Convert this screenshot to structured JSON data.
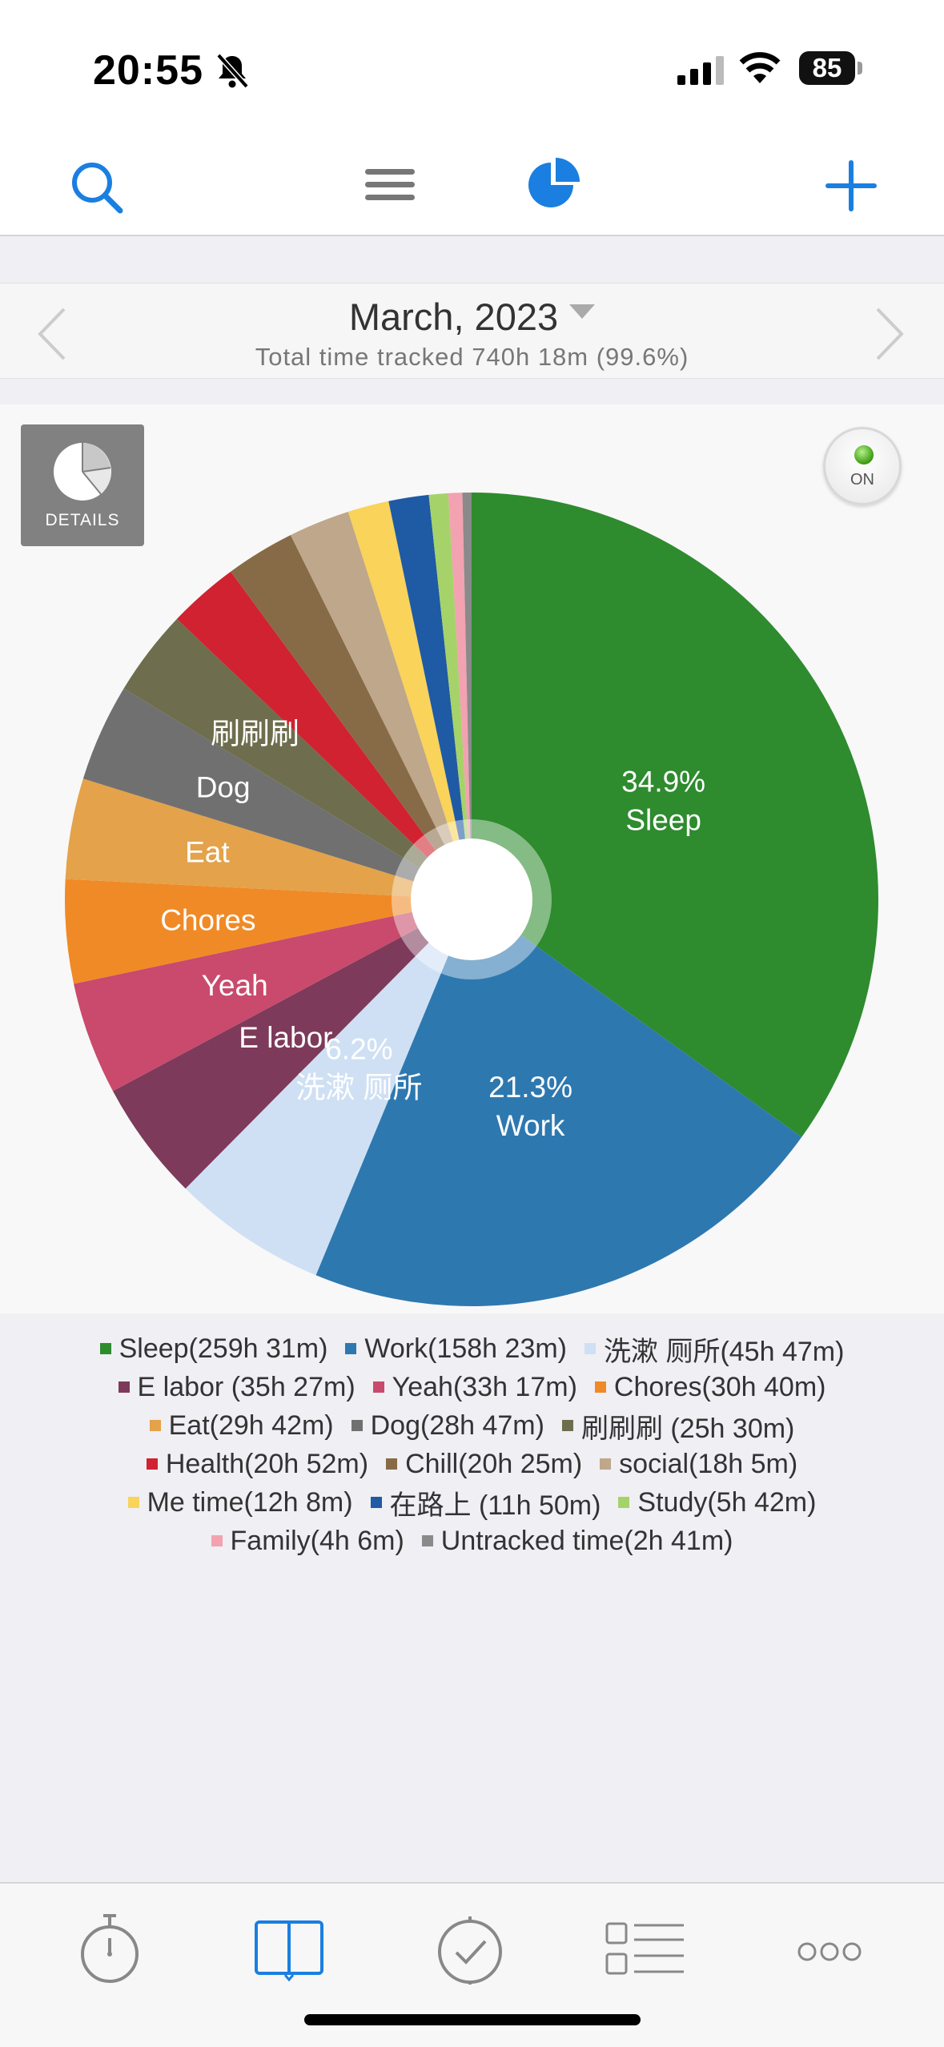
{
  "status_bar": {
    "time": "20:55",
    "battery": "85"
  },
  "header": {
    "month_title": "March, 2023",
    "total_tracked": "Total time tracked 740h 18m (99.6%)"
  },
  "chart_panel": {
    "details_label": "DETAILS",
    "toggle_label": "ON"
  },
  "chart_data": {
    "type": "pie",
    "unit": "minutes",
    "slices": [
      {
        "name": "Sleep",
        "legend": "Sleep(259h 31m)",
        "minutes": 15571,
        "color": "#2e8b2e",
        "label_pct": "34.9%",
        "label_name": "Sleep"
      },
      {
        "name": "Work",
        "legend": "Work(158h 23m)",
        "minutes": 9503,
        "color": "#2e78b0",
        "label_pct": "21.3%",
        "label_name": "Work"
      },
      {
        "name": "洗漱 厕所",
        "legend": "洗漱 厕所(45h 47m)",
        "minutes": 2747,
        "color": "#cfe0f4",
        "label_pct": "6.2%",
        "label_name": "洗漱 厕所"
      },
      {
        "name": "E labor",
        "legend": "E labor (35h 27m)",
        "minutes": 2127,
        "color": "#7d3a5a",
        "label_pct": "",
        "label_name": "E labor"
      },
      {
        "name": "Yeah",
        "legend": "Yeah(33h 17m)",
        "minutes": 1997,
        "color": "#c94a6c",
        "label_pct": "",
        "label_name": "Yeah"
      },
      {
        "name": "Chores",
        "legend": "Chores(30h 40m)",
        "minutes": 1840,
        "color": "#f08a26",
        "label_pct": "",
        "label_name": "Chores"
      },
      {
        "name": "Eat",
        "legend": "Eat(29h 42m)",
        "minutes": 1782,
        "color": "#e4a24a",
        "label_pct": "",
        "label_name": "Eat"
      },
      {
        "name": "Dog",
        "legend": "Dog(28h 47m)",
        "minutes": 1727,
        "color": "#707070",
        "label_pct": "",
        "label_name": "Dog"
      },
      {
        "name": "刷刷刷",
        "legend": "刷刷刷 (25h 30m)",
        "minutes": 1530,
        "color": "#6e6e4e",
        "label_pct": "",
        "label_name": "刷刷刷"
      },
      {
        "name": "Health",
        "legend": "Health(20h 52m)",
        "minutes": 1252,
        "color": "#d02230",
        "label_pct": "",
        "label_name": ""
      },
      {
        "name": "Chill",
        "legend": "Chill(20h 25m)",
        "minutes": 1225,
        "color": "#876b47",
        "label_pct": "",
        "label_name": ""
      },
      {
        "name": "social",
        "legend": "social(18h 5m)",
        "minutes": 1085,
        "color": "#bfa78b",
        "label_pct": "",
        "label_name": ""
      },
      {
        "name": "Me time",
        "legend": "Me time(12h 8m)",
        "minutes": 728,
        "color": "#f9d35a",
        "label_pct": "",
        "label_name": ""
      },
      {
        "name": "在路上",
        "legend": "在路上 (11h 50m)",
        "minutes": 710,
        "color": "#1f5aa4",
        "label_pct": "",
        "label_name": ""
      },
      {
        "name": "Study",
        "legend": "Study(5h 42m)",
        "minutes": 342,
        "color": "#a6d26a",
        "label_pct": "",
        "label_name": ""
      },
      {
        "name": "Family",
        "legend": "Family(4h 6m)",
        "minutes": 246,
        "color": "#f2a2b0",
        "label_pct": "",
        "label_name": ""
      },
      {
        "name": "Untracked time",
        "legend": "Untracked time(2h 41m)",
        "minutes": 161,
        "color": "#8a8a8a",
        "label_pct": "",
        "label_name": ""
      }
    ],
    "legend_rows": [
      [
        0,
        1,
        2
      ],
      [
        3,
        4,
        5
      ],
      [
        6,
        7,
        8
      ],
      [
        9,
        10,
        11
      ],
      [
        12,
        13,
        14
      ],
      [
        15,
        16
      ]
    ]
  },
  "colors": {
    "accent": "#1a7fe0",
    "icon_gray": "#888888"
  }
}
